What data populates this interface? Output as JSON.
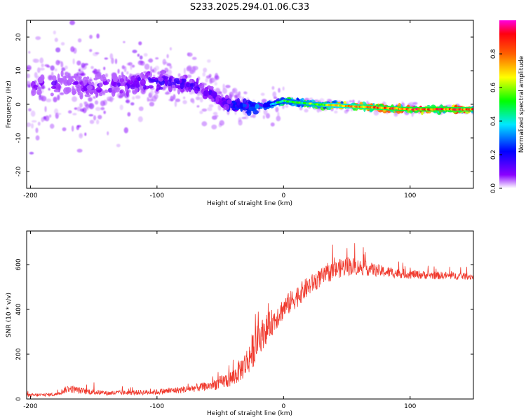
{
  "title": "S233.2025.294.01.06.C33",
  "chart_data": [
    {
      "type": "heatmap",
      "name": "spectrogram",
      "xlabel": "Height of straight line (km)",
      "ylabel": "Frequency (Hz)",
      "xlim": [
        -203,
        150
      ],
      "ylim": [
        -25,
        25
      ],
      "xticks": [
        -200,
        -100,
        0,
        100
      ],
      "yticks": [
        -20,
        -10,
        0,
        10,
        20
      ],
      "colorbar": {
        "label": "Normalized spectral amplitude",
        "range": [
          0,
          1
        ],
        "ticks": [
          0.0,
          0.2,
          0.4,
          0.6,
          0.8
        ],
        "colormap": [
          "#ffffff",
          "#7d00ff",
          "#0000ff",
          "#00ffff",
          "#00ff00",
          "#ffff00",
          "#ff8000",
          "#ff0000",
          "#ff00ff"
        ]
      },
      "ridge": {
        "x": [
          -175,
          -150,
          -125,
          -100,
          -75,
          -60,
          -50,
          -40,
          -25,
          -10,
          0,
          25,
          50,
          75,
          100,
          125,
          150
        ],
        "frequency": [
          6,
          5,
          6,
          7,
          6,
          4,
          1,
          0,
          -1,
          0,
          1,
          0,
          -0.5,
          -1,
          -1.5,
          -1.5,
          -1.5
        ],
        "amplitude": [
          0.12,
          0.12,
          0.15,
          0.18,
          0.18,
          0.15,
          0.2,
          0.25,
          0.3,
          0.4,
          0.5,
          0.6,
          0.75,
          0.85,
          0.9,
          0.9,
          0.85
        ]
      }
    },
    {
      "type": "line",
      "name": "snr",
      "xlabel": "Height of straight line (km)",
      "ylabel": "SNR (10 * v/v)",
      "xlim": [
        -203,
        150
      ],
      "ylim": [
        0,
        750
      ],
      "xticks": [
        -200,
        -100,
        0,
        100
      ],
      "yticks": [
        0,
        200,
        400,
        600
      ],
      "color": "#f03a2e",
      "envelope": {
        "x": [
          -203,
          -180,
          -170,
          -160,
          -140,
          -100,
          -80,
          -60,
          -50,
          -40,
          -30,
          -25,
          -20,
          -10,
          0,
          10,
          20,
          30,
          40,
          50,
          60,
          70,
          80,
          100,
          120,
          150
        ],
        "mean": [
          15,
          20,
          45,
          35,
          25,
          30,
          40,
          55,
          70,
          90,
          150,
          200,
          260,
          330,
          400,
          450,
          500,
          540,
          570,
          590,
          585,
          575,
          565,
          555,
          550,
          545
        ],
        "spread": [
          15,
          15,
          35,
          30,
          20,
          25,
          30,
          40,
          60,
          80,
          120,
          160,
          150,
          120,
          100,
          100,
          90,
          80,
          80,
          90,
          70,
          60,
          50,
          40,
          35,
          30
        ]
      }
    }
  ]
}
